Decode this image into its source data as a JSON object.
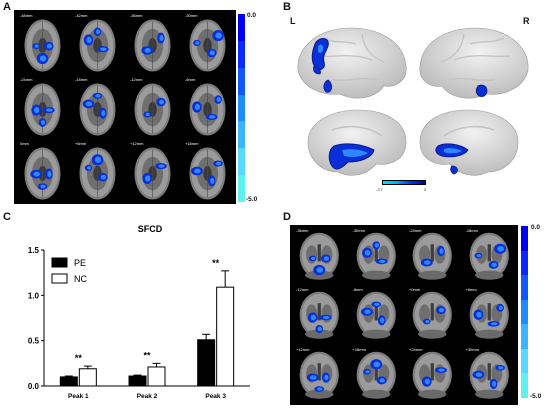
{
  "figure": {
    "panels": {
      "a": "A",
      "b": "B",
      "c": "C",
      "d": "D"
    },
    "colors": {
      "fill_dark": "#0a2fd6",
      "fill_light": "#2f86ff",
      "outline": "#071a8c",
      "slice_bg": "#8a8a8a"
    }
  },
  "panel_a": {
    "slices": [
      "-48mm",
      "-42mm",
      "-36mm",
      "-30mm",
      "-24mm",
      "-18mm",
      "-12mm",
      "-6mm",
      "0mm",
      "+6mm",
      "+12mm",
      "+18mm"
    ],
    "colorbar": {
      "max_label": "0.0",
      "min_label": "-5.0",
      "colors": [
        "#0000f0",
        "#0a28ff",
        "#0f5aff",
        "#1e8cff",
        "#3cb4ff",
        "#5ad8ff",
        "#5ff0f0"
      ]
    }
  },
  "panel_b": {
    "left_label": "L",
    "right_label": "R",
    "colorbar": {
      "min_label": "-3.7",
      "max_label": "0"
    }
  },
  "panel_d": {
    "slices": [
      "-36mm",
      "-30mm",
      "-24mm",
      "-18mm",
      "-12mm",
      "-6mm",
      "+0mm",
      "+6mm",
      "+12mm",
      "+18mm",
      "+24mm",
      "+30mm"
    ],
    "colorbar": {
      "max_label": "0.0",
      "min_label": "-5.0",
      "colors": [
        "#0000f0",
        "#0a28ff",
        "#0f5aff",
        "#1e8cff",
        "#3cb4ff",
        "#5ad8ff",
        "#5ff0f0"
      ]
    }
  },
  "chart_data": {
    "type": "bar",
    "title": "SFCD",
    "categories": [
      "Peak 1",
      "Peak 2",
      "Peak 3"
    ],
    "series": [
      {
        "name": "PE",
        "values": [
          0.1,
          0.11,
          0.51
        ],
        "errors": [
          0.01,
          0.01,
          0.06
        ],
        "color": "#000000"
      },
      {
        "name": "NC",
        "values": [
          0.19,
          0.21,
          1.09
        ],
        "errors": [
          0.03,
          0.04,
          0.18
        ],
        "color": "#ffffff"
      }
    ],
    "yticks": [
      "0.0",
      "0.5",
      "1.0",
      "1.5"
    ],
    "ylim": [
      0,
      1.5
    ],
    "annotations": [
      "**",
      "**",
      "**"
    ],
    "legend_position": "top-left",
    "xlabel": "",
    "ylabel": ""
  }
}
